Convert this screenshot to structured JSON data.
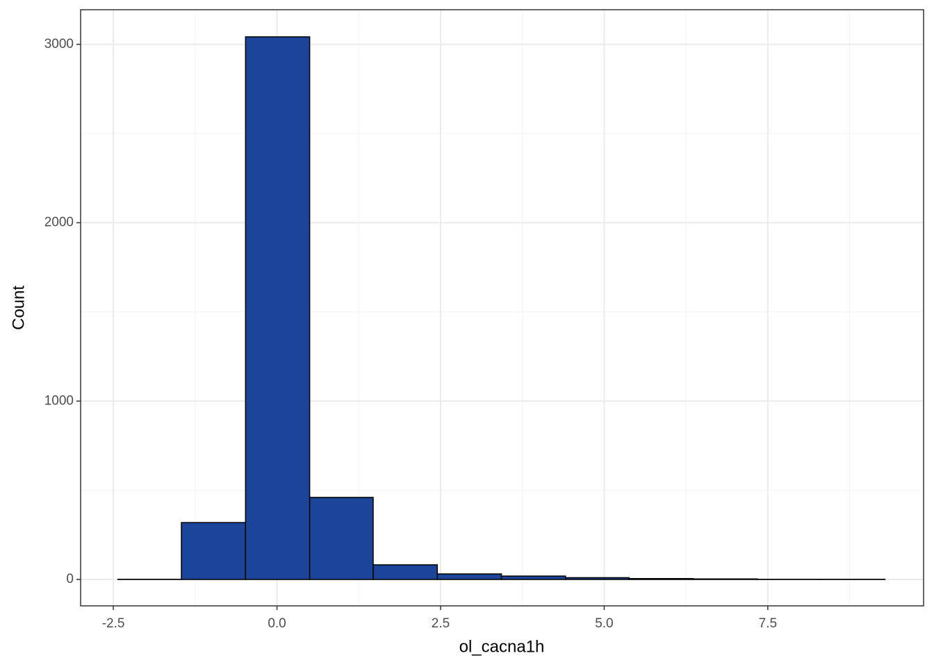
{
  "chart_data": {
    "type": "histogram",
    "x_label": "ol_cacna1h",
    "y_label": "Count",
    "bins": [
      -2.43,
      -1.46,
      -0.48,
      0.5,
      1.47,
      2.45,
      3.43,
      4.41,
      5.38,
      6.36,
      7.34,
      8.31,
      9.29
    ],
    "values": [
      1,
      319,
      3042,
      460,
      82,
      31,
      19,
      10,
      5,
      3,
      1,
      1
    ],
    "color": "#1a4599",
    "edge_color": "#000000",
    "xlim": [
      -3.0,
      9.88
    ],
    "ylim": [
      -148,
      3194
    ],
    "xticks": [
      -2.5,
      {
        "value": 0,
        "label": "0.0"
      },
      2.5,
      {
        "value": 5,
        "label": "5.0"
      },
      7.5
    ],
    "yticks": [
      0,
      1000,
      2000,
      3000
    ],
    "x_minor_ticks": [
      -1.25,
      1.25,
      3.75,
      6.25,
      8.75
    ],
    "y_minor_ticks": [
      500,
      1500,
      2500
    ],
    "grid": true
  }
}
